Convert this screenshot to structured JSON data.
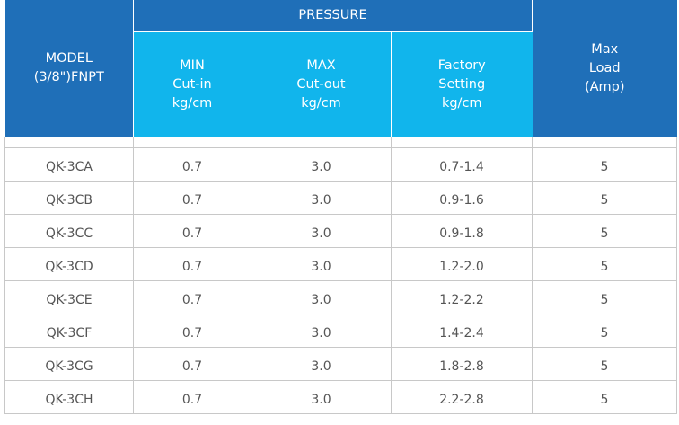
{
  "header": {
    "model": [
      "MODEL",
      "(3/8\")FNPT"
    ],
    "pressure": "PRESSURE",
    "min": [
      "MIN",
      "Cut-in",
      "kg/cm"
    ],
    "max": [
      "MAX",
      "Cut-out",
      "kg/cm"
    ],
    "factory": [
      "Factory",
      "Setting",
      "kg/cm"
    ],
    "load": [
      "Max",
      "Load",
      "(Amp)"
    ]
  },
  "rows": [
    {
      "model": "QK-3CA",
      "min": "0.7",
      "max": "3.0",
      "factory": "0.7-1.4",
      "load": "5"
    },
    {
      "model": "QK-3CB",
      "min": "0.7",
      "max": "3.0",
      "factory": "0.9-1.6",
      "load": "5"
    },
    {
      "model": "QK-3CC",
      "min": "0.7",
      "max": "3.0",
      "factory": "0.9-1.8",
      "load": "5"
    },
    {
      "model": "QK-3CD",
      "min": "0.7",
      "max": "3.0",
      "factory": "1.2-2.0",
      "load": "5"
    },
    {
      "model": "QK-3CE",
      "min": "0.7",
      "max": "3.0",
      "factory": "1.2-2.2",
      "load": "5"
    },
    {
      "model": "QK-3CF",
      "min": "0.7",
      "max": "3.0",
      "factory": "1.4-2.4",
      "load": "5"
    },
    {
      "model": "QK-3CG",
      "min": "0.7",
      "max": "3.0",
      "factory": "1.8-2.8",
      "load": "5"
    },
    {
      "model": "QK-3CH",
      "min": "0.7",
      "max": "3.0",
      "factory": "2.2-2.8",
      "load": "5"
    }
  ],
  "colors": {
    "header_dark": "#1f6fb8",
    "header_light": "#11b5ec",
    "cell_text": "#555555",
    "grid": "#c8c8c8"
  }
}
